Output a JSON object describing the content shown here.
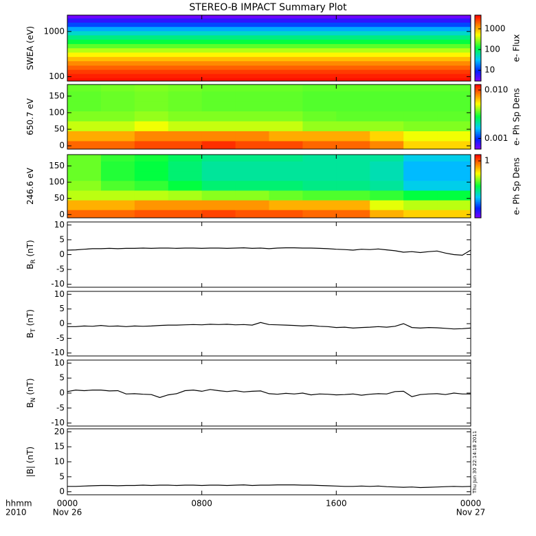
{
  "title": "STEREO-B IMPACT Summary Plot",
  "x_axis": {
    "xlim": [
      0,
      24
    ],
    "xticks": [
      {
        "value": 0,
        "label": "0000"
      },
      {
        "value": 8,
        "label": "0800"
      },
      {
        "value": 16,
        "label": "1600"
      },
      {
        "value": 24,
        "label": "0000"
      }
    ],
    "dates": [
      {
        "value": 0,
        "label": "Nov 26"
      },
      {
        "value": 24,
        "label": "Nov 27"
      }
    ],
    "format_label": "hhmm",
    "year_label": "2010"
  },
  "timestamp": "Thu Jun 30 22:14:18 2011",
  "chart_data": [
    {
      "type": "spectrum",
      "ylabel": "SWEA (eV)",
      "ylog": true,
      "ylim": [
        80,
        2300
      ],
      "yticks": [
        100,
        1000
      ],
      "y": [
        85,
        105,
        130,
        160,
        200,
        250,
        310,
        390,
        480,
        600,
        750,
        930,
        1150,
        1430,
        1780,
        2200
      ],
      "z": [
        4000,
        3500,
        2800,
        2000,
        1400,
        900,
        550,
        330,
        200,
        120,
        75,
        45,
        25,
        12,
        6,
        3.5
      ],
      "zlog": true,
      "zlim": [
        3,
        4600
      ],
      "zticks": [
        10,
        100,
        1000
      ],
      "zlabel": "e- Flux"
    },
    {
      "type": "heatmap",
      "ylabel": "650.7 eV",
      "ylim": [
        -10,
        185
      ],
      "yticks": [
        0,
        50,
        100,
        150
      ],
      "x": [
        1,
        3,
        5,
        7,
        9,
        11,
        13,
        15,
        17,
        19,
        21,
        23
      ],
      "y": [
        0,
        30,
        60,
        90,
        120,
        150,
        180
      ],
      "z": [
        [
          0.009,
          0.009,
          0.01,
          0.01,
          0.011,
          0.01,
          0.01,
          0.009,
          0.009,
          0.008,
          0.006,
          0.006
        ],
        [
          0.007,
          0.007,
          0.008,
          0.008,
          0.008,
          0.008,
          0.007,
          0.007,
          0.007,
          0.006,
          0.005,
          0.005
        ],
        [
          0.0045,
          0.0045,
          0.005,
          0.0045,
          0.0045,
          0.0045,
          0.0045,
          0.004,
          0.004,
          0.004,
          0.0038,
          0.0038
        ],
        [
          0.0038,
          0.0038,
          0.004,
          0.0038,
          0.0038,
          0.0038,
          0.0038,
          0.0036,
          0.0035,
          0.0035,
          0.0035,
          0.0035
        ],
        [
          0.0035,
          0.0036,
          0.0037,
          0.0036,
          0.0035,
          0.0035,
          0.0035,
          0.0034,
          0.0034,
          0.0034,
          0.0034,
          0.0034
        ],
        [
          0.0035,
          0.0036,
          0.0037,
          0.0036,
          0.0035,
          0.0035,
          0.0035,
          0.0034,
          0.0034,
          0.0034,
          0.0034,
          0.0034
        ],
        [
          0.0036,
          0.0037,
          0.0038,
          0.0037,
          0.0036,
          0.0036,
          0.0036,
          0.0035,
          0.0035,
          0.0035,
          0.0035,
          0.0035
        ]
      ],
      "zlog": true,
      "zlim": [
        0.0006,
        0.013
      ],
      "zticks": [
        0.001,
        {
          "value": 0.01,
          "label": "0.010"
        }
      ],
      "zlabel": "e- Ph Sp Dens"
    },
    {
      "type": "heatmap",
      "ylabel": "246.6 eV",
      "ylim": [
        -10,
        185
      ],
      "yticks": [
        0,
        50,
        100,
        150
      ],
      "x": [
        1,
        3,
        5,
        7,
        9,
        11,
        13,
        15,
        17,
        19,
        21,
        23
      ],
      "y": [
        0,
        30,
        60,
        90,
        120,
        150,
        180
      ],
      "z": [
        [
          0.9,
          0.9,
          1.0,
          1.0,
          1.1,
          1.0,
          1.0,
          0.9,
          0.9,
          0.6,
          0.5,
          0.5
        ],
        [
          0.6,
          0.6,
          0.7,
          0.7,
          0.7,
          0.7,
          0.6,
          0.6,
          0.6,
          0.35,
          0.3,
          0.3
        ],
        [
          0.3,
          0.3,
          0.3,
          0.28,
          0.25,
          0.25,
          0.22,
          0.2,
          0.2,
          0.18,
          0.15,
          0.15
        ],
        [
          0.25,
          0.2,
          0.18,
          0.15,
          0.12,
          0.12,
          0.12,
          0.11,
          0.11,
          0.1,
          0.07,
          0.07
        ],
        [
          0.22,
          0.17,
          0.15,
          0.12,
          0.1,
          0.1,
          0.1,
          0.1,
          0.1,
          0.09,
          0.06,
          0.06
        ],
        [
          0.22,
          0.17,
          0.15,
          0.12,
          0.1,
          0.1,
          0.1,
          0.1,
          0.1,
          0.09,
          0.06,
          0.06
        ],
        [
          0.22,
          0.18,
          0.16,
          0.13,
          0.11,
          0.11,
          0.11,
          0.1,
          0.1,
          0.1,
          0.07,
          0.07
        ]
      ],
      "zlog": true,
      "zlim": [
        0.014,
        1.6
      ],
      "zticks": [
        1
      ],
      "zlabel": "e- Ph Sp Dens"
    },
    {
      "type": "line",
      "ylabel": "B",
      "ylabel_sub": "R",
      "ylabel_unit": " (nT)",
      "ylim": [
        -11,
        11
      ],
      "yticks": [
        -10,
        -5,
        0,
        5,
        10
      ],
      "color": "#000000",
      "x": [
        0,
        0.5,
        1,
        1.5,
        2,
        2.5,
        3,
        3.5,
        4,
        4.5,
        5,
        5.5,
        6,
        6.5,
        7,
        7.5,
        8,
        8.5,
        9,
        9.5,
        10,
        10.5,
        11,
        11.5,
        12,
        12.5,
        13,
        13.5,
        14,
        14.5,
        15,
        15.5,
        16,
        16.5,
        17,
        17.5,
        18,
        18.5,
        19,
        19.5,
        20,
        20.5,
        21,
        21.5,
        22,
        22.5,
        23,
        23.5,
        24
      ],
      "values": [
        1.5,
        1.6,
        1.8,
        2,
        2,
        2.1,
        2,
        2.1,
        2.1,
        2.2,
        2.1,
        2.2,
        2.2,
        2.1,
        2.2,
        2.2,
        2.1,
        2.2,
        2.2,
        2.1,
        2.2,
        2.3,
        2.1,
        2.2,
        2,
        2.2,
        2.3,
        2.3,
        2.2,
        2.2,
        2.1,
        2,
        1.8,
        1.7,
        1.5,
        1.8,
        1.7,
        1.9,
        1.6,
        1.3,
        0.8,
        1,
        0.7,
        1,
        1.2,
        0.5,
        0,
        -0.2,
        1.5
      ]
    },
    {
      "type": "line",
      "ylabel": "B",
      "ylabel_sub": "T",
      "ylabel_unit": " (nT)",
      "ylim": [
        -11,
        11
      ],
      "yticks": [
        -10,
        -5,
        0,
        5,
        10
      ],
      "color": "#000000",
      "x": [
        0,
        0.5,
        1,
        1.5,
        2,
        2.5,
        3,
        3.5,
        4,
        4.5,
        5,
        5.5,
        6,
        6.5,
        7,
        7.5,
        8,
        8.5,
        9,
        9.5,
        10,
        10.5,
        11,
        11.5,
        12,
        12.5,
        13,
        13.5,
        14,
        14.5,
        15,
        15.5,
        16,
        16.5,
        17,
        17.5,
        18,
        18.5,
        19,
        19.5,
        20,
        20.5,
        21,
        21.5,
        22,
        22.5,
        23,
        23.5,
        24
      ],
      "values": [
        -1,
        -1,
        -0.8,
        -0.9,
        -0.6,
        -0.9,
        -0.8,
        -1,
        -0.8,
        -0.9,
        -0.8,
        -0.6,
        -0.5,
        -0.5,
        -0.4,
        -0.3,
        -0.4,
        -0.2,
        -0.3,
        -0.2,
        -0.4,
        -0.3,
        -0.5,
        0.4,
        -0.3,
        -0.4,
        -0.5,
        -0.6,
        -0.8,
        -0.6,
        -0.9,
        -1,
        -1.3,
        -1.2,
        -1.5,
        -1.3,
        -1.2,
        -1,
        -1.2,
        -0.9,
        0,
        -1.3,
        -1.5,
        -1.3,
        -1.4,
        -1.6,
        -1.8,
        -1.7,
        -1.5
      ]
    },
    {
      "type": "line",
      "ylabel": "B",
      "ylabel_sub": "N",
      "ylabel_unit": " (nT)",
      "ylim": [
        -11,
        11
      ],
      "yticks": [
        -10,
        -5,
        0,
        5,
        10
      ],
      "color": "#000000",
      "x": [
        0,
        0.5,
        1,
        1.5,
        2,
        2.5,
        3,
        3.5,
        4,
        4.5,
        5,
        5.5,
        6,
        6.5,
        7,
        7.5,
        8,
        8.5,
        9,
        9.5,
        10,
        10.5,
        11,
        11.5,
        12,
        12.5,
        13,
        13.5,
        14,
        14.5,
        15,
        15.5,
        16,
        16.5,
        17,
        17.5,
        18,
        18.5,
        19,
        19.5,
        20,
        20.5,
        21,
        21.5,
        22,
        22.5,
        23,
        23.5,
        24
      ],
      "values": [
        0.5,
        1,
        0.8,
        1,
        1,
        0.7,
        0.8,
        -0.3,
        -0.2,
        -0.4,
        -0.5,
        -1.5,
        -0.6,
        -0.2,
        0.8,
        1,
        0.6,
        1.2,
        0.8,
        0.5,
        0.8,
        0.4,
        0.6,
        0.7,
        -0.2,
        -0.4,
        -0.1,
        -0.3,
        0,
        -0.6,
        -0.3,
        -0.4,
        -0.6,
        -0.5,
        -0.3,
        -0.7,
        -0.4,
        -0.2,
        -0.3,
        0.5,
        0.6,
        -1.2,
        -0.5,
        -0.3,
        -0.2,
        -0.5,
        0,
        -0.3,
        -0.3
      ]
    },
    {
      "type": "line",
      "ylabel": "|B| (nT)",
      "ylim": [
        -1,
        21
      ],
      "yticks": [
        0,
        5,
        10,
        15,
        20
      ],
      "color": "#000000",
      "x": [
        0,
        0.5,
        1,
        1.5,
        2,
        2.5,
        3,
        3.5,
        4,
        4.5,
        5,
        5.5,
        6,
        6.5,
        7,
        7.5,
        8,
        8.5,
        9,
        9.5,
        10,
        10.5,
        11,
        11.5,
        12,
        12.5,
        13,
        13.5,
        14,
        14.5,
        15,
        15.5,
        16,
        16.5,
        17,
        17.5,
        18,
        18.5,
        19,
        19.5,
        20,
        20.5,
        21,
        21.5,
        22,
        22.5,
        23,
        23.5,
        24
      ],
      "values": [
        1.8,
        1.8,
        1.9,
        2,
        2.1,
        2.1,
        2,
        2.1,
        2.1,
        2.2,
        2.1,
        2.2,
        2.2,
        2.1,
        2.2,
        2.2,
        2.1,
        2.2,
        2.2,
        2.1,
        2.2,
        2.3,
        2.1,
        2.2,
        2.2,
        2.3,
        2.3,
        2.3,
        2.2,
        2.2,
        2.1,
        2,
        1.9,
        1.8,
        1.8,
        1.9,
        1.8,
        1.9,
        1.7,
        1.6,
        1.5,
        1.6,
        1.4,
        1.5,
        1.6,
        1.7,
        1.8,
        1.7,
        1.8
      ]
    }
  ]
}
